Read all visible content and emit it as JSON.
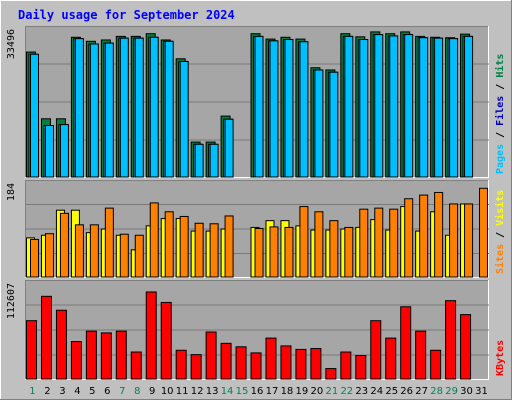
{
  "title": "Daily usage for September 2024",
  "colors": {
    "background": "#C0C0C0",
    "plot_bg": "#A6A6A6",
    "title": "#0000FF",
    "hits": "#008040",
    "files": "#00C0FF",
    "pages": "#00BFFF",
    "visits": "#FFFF00",
    "sites": "#FF8000",
    "kbytes": "#FF0000",
    "weekend_label": "#00805C"
  },
  "legend": {
    "top": [
      {
        "text": "Pages",
        "color": "#00BFFF"
      },
      {
        "text": " / ",
        "color": "#000000"
      },
      {
        "text": "Files",
        "color": "#0000C0"
      },
      {
        "text": " / ",
        "color": "#000000"
      },
      {
        "text": "Hits",
        "color": "#008040"
      }
    ],
    "middle": [
      {
        "text": "Sites",
        "color": "#FF8000"
      },
      {
        "text": " / ",
        "color": "#000000"
      },
      {
        "text": "Visits",
        "color": "#FFFF00"
      }
    ],
    "bottom": [
      {
        "text": "KBytes",
        "color": "#FF0000"
      }
    ]
  },
  "chart_data": [
    {
      "type": "bar",
      "panel": "top",
      "ymax_label": "33496",
      "ylim": [
        0,
        33496
      ],
      "categories": [
        "1",
        "2",
        "3",
        "4",
        "5",
        "6",
        "7",
        "8",
        "9",
        "10",
        "11",
        "12",
        "13",
        "14",
        "15",
        "16",
        "17",
        "18",
        "19",
        "20",
        "21",
        "22",
        "23",
        "24",
        "25",
        "26",
        "27",
        "28",
        "29",
        "30",
        "31"
      ],
      "weekend_days": [
        1,
        7,
        8,
        14,
        15,
        21,
        22,
        28,
        29
      ],
      "series": [
        {
          "name": "Hits",
          "values": [
            27900,
            13000,
            13000,
            31200,
            30300,
            30600,
            31400,
            31400,
            32000,
            30600,
            26400,
            7800,
            7800,
            13600,
            null,
            32000,
            30800,
            31200,
            30800,
            24400,
            23900,
            32000,
            31300,
            32400,
            32000,
            32400,
            31400,
            31200,
            31100,
            31900,
            null
          ]
        },
        {
          "name": "Files",
          "values": [
            27400,
            11500,
            11700,
            30900,
            29700,
            29900,
            31000,
            31000,
            31200,
            30300,
            25800,
            7300,
            7300,
            12900,
            null,
            31400,
            30400,
            30700,
            30200,
            23900,
            23400,
            31400,
            30700,
            31800,
            31500,
            31800,
            31100,
            31000,
            30900,
            31400,
            null
          ]
        },
        {
          "name": "Pages",
          "values": [
            27400,
            11500,
            11700,
            30900,
            29700,
            29900,
            31000,
            31000,
            31200,
            30300,
            25800,
            7300,
            7300,
            12900,
            null,
            31400,
            30400,
            30700,
            30200,
            23900,
            23400,
            31400,
            30700,
            31800,
            31500,
            31800,
            31100,
            31000,
            30900,
            31400,
            null
          ]
        }
      ]
    },
    {
      "type": "bar",
      "panel": "middle",
      "ymax_label": "184",
      "ylim": [
        0,
        184
      ],
      "categories": [
        "1",
        "2",
        "3",
        "4",
        "5",
        "6",
        "7",
        "8",
        "9",
        "10",
        "11",
        "12",
        "13",
        "14",
        "15",
        "16",
        "17",
        "18",
        "19",
        "20",
        "21",
        "22",
        "23",
        "24",
        "25",
        "26",
        "27",
        "28",
        "29",
        "30",
        "31"
      ],
      "series": [
        {
          "name": "Visits",
          "values": [
            75,
            80,
            128,
            128,
            85,
            92,
            80,
            52,
            98,
            112,
            112,
            88,
            88,
            92,
            null,
            95,
            108,
            108,
            98,
            90,
            90,
            92,
            95,
            110,
            90,
            135,
            88,
            125,
            80,
            140,
            null
          ]
        },
        {
          "name": "Sites",
          "values": [
            72,
            83,
            122,
            100,
            100,
            132,
            82,
            80,
            142,
            125,
            116,
            103,
            102,
            117,
            null,
            93,
            96,
            95,
            135,
            125,
            108,
            95,
            130,
            132,
            130,
            150,
            157,
            162,
            140,
            140,
            170
          ]
        }
      ]
    },
    {
      "type": "bar",
      "panel": "bottom",
      "ymax_label": "112607",
      "ylim": [
        0,
        112607
      ],
      "categories": [
        "1",
        "2",
        "3",
        "4",
        "5",
        "6",
        "7",
        "8",
        "9",
        "10",
        "11",
        "12",
        "13",
        "14",
        "15",
        "16",
        "17",
        "18",
        "19",
        "20",
        "21",
        "22",
        "23",
        "24",
        "25",
        "26",
        "27",
        "28",
        "29",
        "30",
        "31"
      ],
      "series": [
        {
          "name": "KBytes",
          "values": [
            67000,
            95000,
            79000,
            43000,
            55000,
            53000,
            55000,
            31000,
            100000,
            88000,
            33000,
            28000,
            54000,
            41000,
            37000,
            30000,
            47000,
            38000,
            34000,
            35000,
            12000,
            31000,
            27000,
            67000,
            47000,
            83000,
            55000,
            33000,
            90000,
            74000,
            null
          ]
        }
      ]
    }
  ]
}
